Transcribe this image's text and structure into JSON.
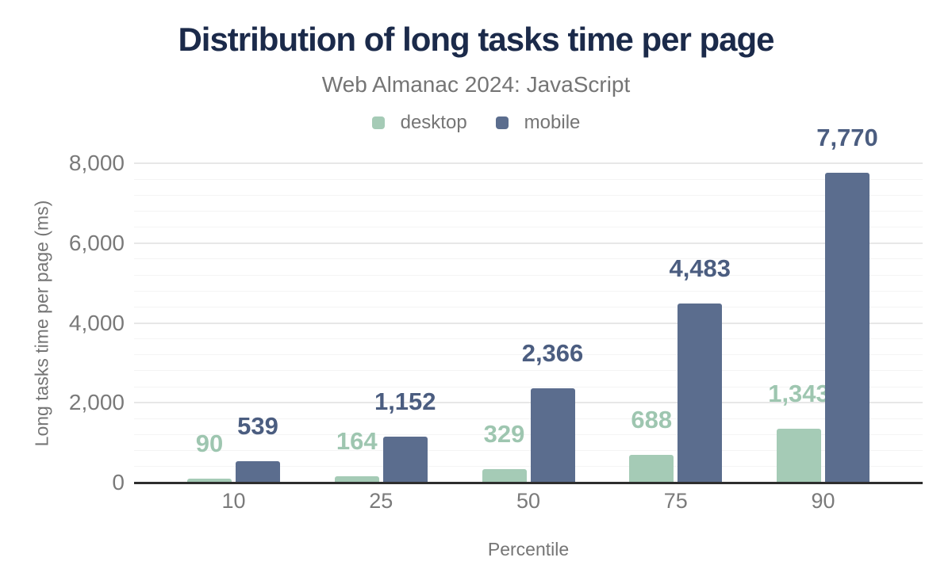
{
  "title": "Distribution of long tasks time per page",
  "subtitle": "Web Almanac 2024: JavaScript",
  "legend": [
    {
      "name": "desktop",
      "label": "desktop",
      "color": "#a5cbb6"
    },
    {
      "name": "mobile",
      "label": "mobile",
      "color": "#5b6d8e"
    }
  ],
  "colors": {
    "title": "#1b2a4a",
    "muted_text": "#757575",
    "axis_line": "#2e2e2e",
    "grid_major": "#e7e7e7",
    "grid_minor": "#f4f4f4",
    "desktop_bar": "#a5cbb6",
    "desktop_label": "#9ec6b0",
    "mobile_bar": "#5b6d8e",
    "mobile_label": "#4b5d80"
  },
  "chart_data": {
    "type": "bar",
    "title": "Distribution of long tasks time per page",
    "subtitle": "Web Almanac 2024: JavaScript",
    "xlabel": "Percentile",
    "ylabel": "Long tasks time per page (ms)",
    "categories": [
      "10",
      "25",
      "50",
      "75",
      "90"
    ],
    "series": [
      {
        "name": "desktop",
        "color": "#a5cbb6",
        "label_color": "#9ec6b0",
        "values": [
          90,
          164,
          329,
          688,
          1343
        ],
        "labels": [
          "90",
          "164",
          "329",
          "688",
          "1,343"
        ]
      },
      {
        "name": "mobile",
        "color": "#5b6d8e",
        "label_color": "#4b5d80",
        "values": [
          539,
          1152,
          2366,
          4483,
          7770
        ],
        "labels": [
          "539",
          "1,152",
          "2,366",
          "4,483",
          "7,770"
        ]
      }
    ],
    "ylim": [
      0,
      8000
    ],
    "yticks": [
      {
        "value": 0,
        "label": "0"
      },
      {
        "value": 2000,
        "label": "2,000"
      },
      {
        "value": 4000,
        "label": "4,000"
      },
      {
        "value": 6000,
        "label": "6,000"
      },
      {
        "value": 8000,
        "label": "8,000"
      }
    ],
    "minor_grid_step": 400,
    "grid": "horizontal",
    "legend_position": "top-center",
    "value_labels": "above-bars"
  }
}
